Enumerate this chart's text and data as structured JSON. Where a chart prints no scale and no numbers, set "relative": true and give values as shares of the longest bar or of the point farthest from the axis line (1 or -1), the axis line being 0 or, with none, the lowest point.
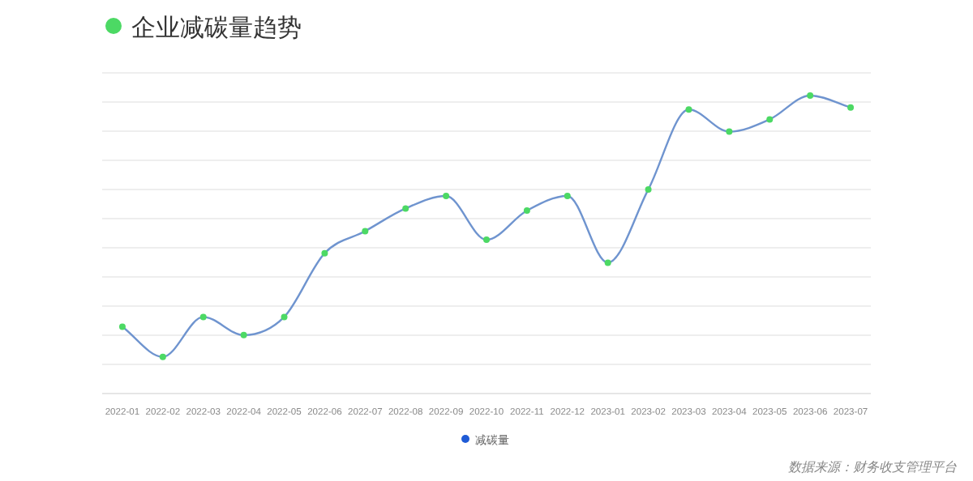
{
  "chart_data": {
    "type": "line",
    "title": "企业减碳量趋势",
    "relative": true,
    "grid": "y",
    "legend": "bottom",
    "marker": "circle",
    "line_style": "solid",
    "categories": [
      "2022-01",
      "2022-02",
      "2022-03",
      "2022-04",
      "2022-05",
      "2022-06",
      "2022-07",
      "2022-08",
      "2022-09",
      "2022-10",
      "2022-11",
      "2022-12",
      "2023-01",
      "2023-02",
      "2023-03",
      "2023-04",
      "2023-05",
      "2023-06",
      "2023-07"
    ],
    "series": [
      {
        "name": "减碳量",
        "color": "#6f94cf",
        "colors": [
          "#4cd964",
          "#4cd964",
          "#4cd964",
          "#4cd964",
          "#4cd964",
          "#4cd964",
          "#4cd964",
          "#4cd964",
          "#4cd964",
          "#4cd964",
          "#4cd964",
          "#4cd964",
          "#4cd964",
          "#4cd964",
          "#4cd964",
          "#4cd964",
          "#4cd964",
          "#4cd964",
          "#4cd964"
        ],
        "values": [
          0.224,
          0.123,
          0.257,
          0.196,
          0.257,
          0.471,
          0.545,
          0.621,
          0.663,
          0.516,
          0.614,
          0.663,
          0.439,
          0.685,
          0.953,
          0.879,
          0.92,
          1,
          0.96
        ]
      }
    ],
    "annotations": [
      "数据来源：财务收支管理平台"
    ]
  }
}
